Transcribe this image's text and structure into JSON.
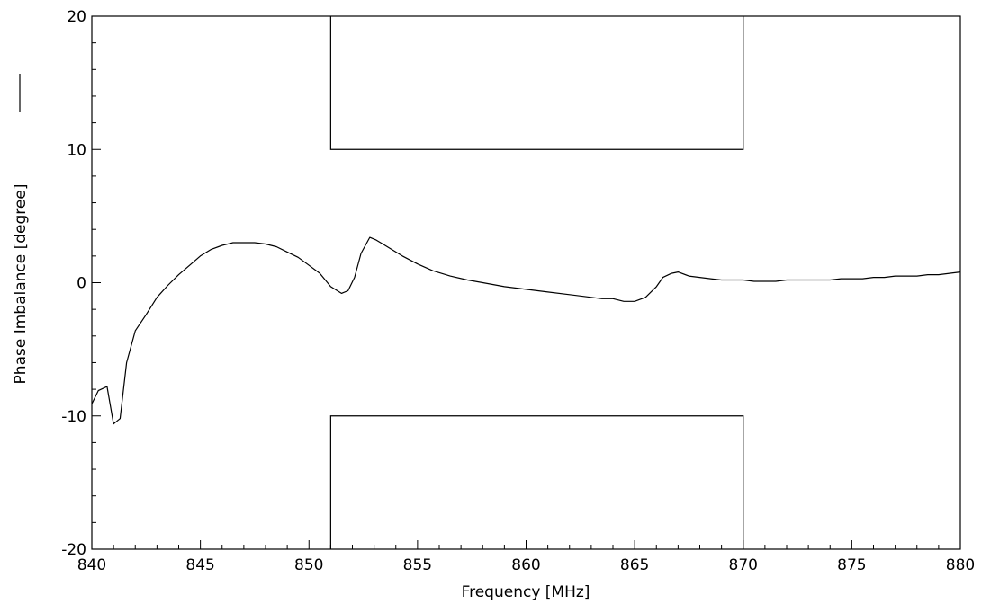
{
  "chart_data": {
    "type": "line",
    "title": "",
    "xlabel": "Frequency [MHz]",
    "ylabel": "Phase Imbalance [degree]",
    "xlim": [
      840,
      880
    ],
    "ylim": [
      -20,
      20
    ],
    "x_ticks": [
      840,
      845,
      850,
      855,
      860,
      865,
      870,
      875,
      880
    ],
    "x_tick_labels": [
      "840",
      "845",
      "850",
      "855",
      "860",
      "865",
      "870",
      "875",
      "880"
    ],
    "y_ticks": [
      -20,
      -10,
      0,
      10,
      20
    ],
    "y_tick_labels": [
      "-20",
      "-10",
      "0",
      "10",
      "20"
    ],
    "grid": false,
    "legend": "line-sample-beside-ylabel",
    "limit_mask": {
      "x_range": [
        851,
        870
      ],
      "upper": 10,
      "lower": -10
    },
    "series": [
      {
        "x": [
          840,
          840.3,
          840.7,
          841.0,
          841.3,
          841.6,
          842.0,
          842.5,
          843.0,
          843.5,
          844.0,
          844.5,
          845.0,
          845.5,
          846.0,
          846.5,
          847.0,
          847.5,
          848.0,
          848.5,
          849.0,
          849.5,
          850.0,
          850.5,
          851.0,
          851.5,
          851.8,
          852.1,
          852.4,
          852.8,
          853.1,
          853.4,
          853.8,
          854.3,
          855.0,
          855.7,
          856.5,
          857.3,
          858.0,
          859.0,
          860.0,
          861.0,
          862.0,
          863.0,
          863.5,
          864.0,
          864.5,
          865.0,
          865.5,
          866.0,
          866.3,
          866.7,
          867.0,
          867.5,
          868.0,
          868.5,
          869.0,
          869.5,
          870.0,
          870.5,
          871.0,
          871.5,
          872.0,
          872.5,
          873.0,
          873.5,
          874.0,
          874.5,
          875.0,
          875.5,
          876.0,
          876.5,
          877.0,
          877.5,
          878.0,
          878.5,
          879.0,
          879.5,
          880.0
        ],
        "values": [
          -9.1,
          -8.1,
          -7.8,
          -10.6,
          -10.2,
          -6.0,
          -3.6,
          -2.4,
          -1.1,
          -0.2,
          0.6,
          1.3,
          2.0,
          2.5,
          2.8,
          3.0,
          3.0,
          3.0,
          2.9,
          2.7,
          2.3,
          1.9,
          1.3,
          0.7,
          -0.3,
          -0.8,
          -0.6,
          0.4,
          2.2,
          3.4,
          3.2,
          2.9,
          2.5,
          2.0,
          1.4,
          0.9,
          0.5,
          0.2,
          0.0,
          -0.3,
          -0.5,
          -0.7,
          -0.9,
          -1.1,
          -1.2,
          -1.2,
          -1.4,
          -1.4,
          -1.1,
          -0.3,
          0.4,
          0.7,
          0.8,
          0.5,
          0.4,
          0.3,
          0.2,
          0.2,
          0.2,
          0.1,
          0.1,
          0.1,
          0.2,
          0.2,
          0.2,
          0.2,
          0.2,
          0.3,
          0.3,
          0.3,
          0.4,
          0.4,
          0.5,
          0.5,
          0.5,
          0.6,
          0.6,
          0.7,
          0.8
        ]
      }
    ]
  }
}
